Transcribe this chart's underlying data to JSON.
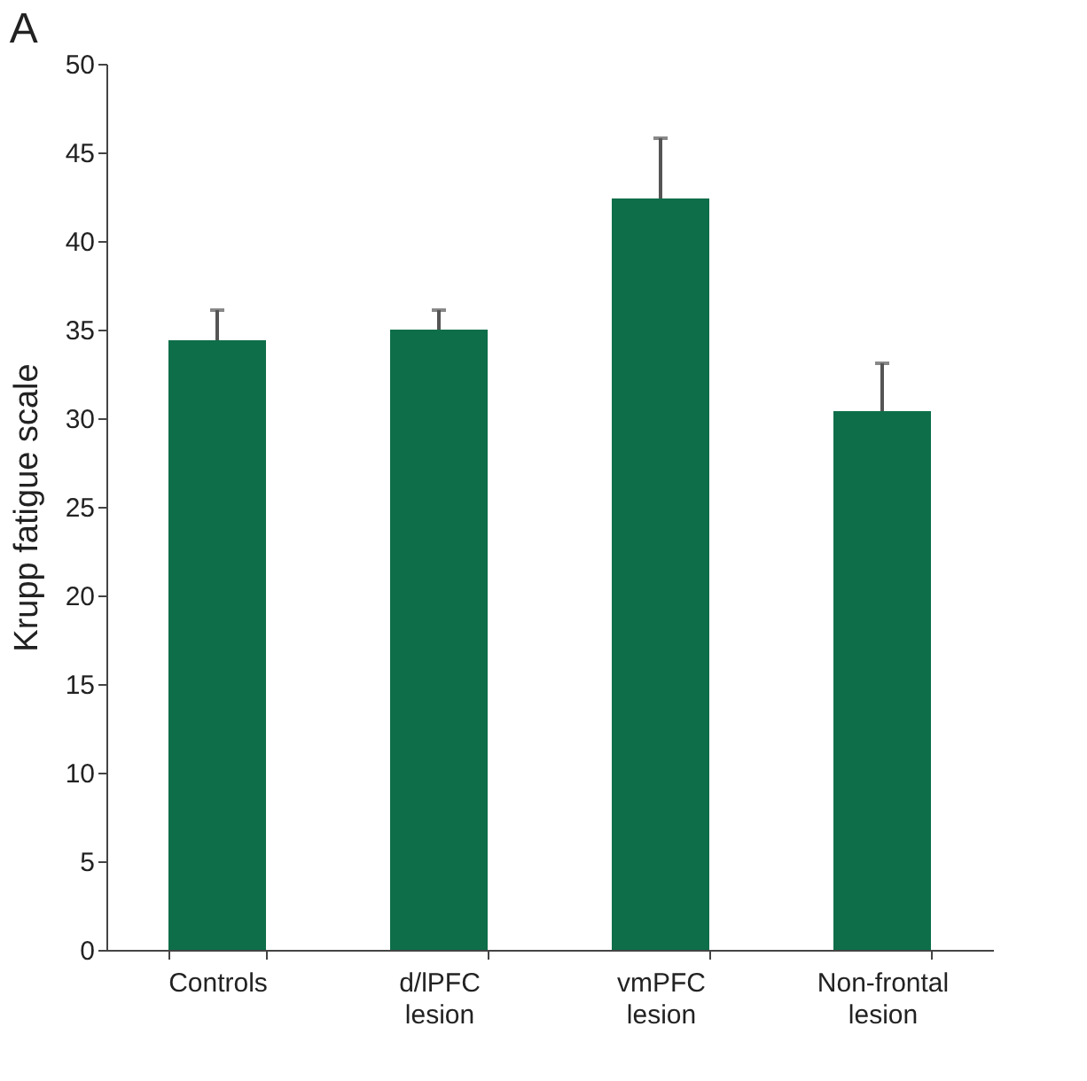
{
  "chart_data": {
    "type": "bar",
    "ylabel": "Krupp fatigue scale",
    "annotations": [
      "A"
    ],
    "categories": [
      "Controls",
      "d/lPFC\nlesion",
      "vmPFC\nlesion",
      "Non-frontal\nlesion"
    ],
    "values": [
      34.4,
      35.0,
      42.4,
      30.4
    ],
    "errors": [
      [
        34.4,
        36.1
      ],
      [
        35.0,
        36.1
      ],
      [
        42.4,
        45.8
      ],
      [
        30.4,
        33.1
      ]
    ],
    "color": "#0e6e4a",
    "ylim": [
      0,
      50
    ],
    "yticks": [
      0,
      5,
      10,
      15,
      20,
      25,
      30,
      35,
      40,
      45,
      50
    ],
    "grid": false
  }
}
